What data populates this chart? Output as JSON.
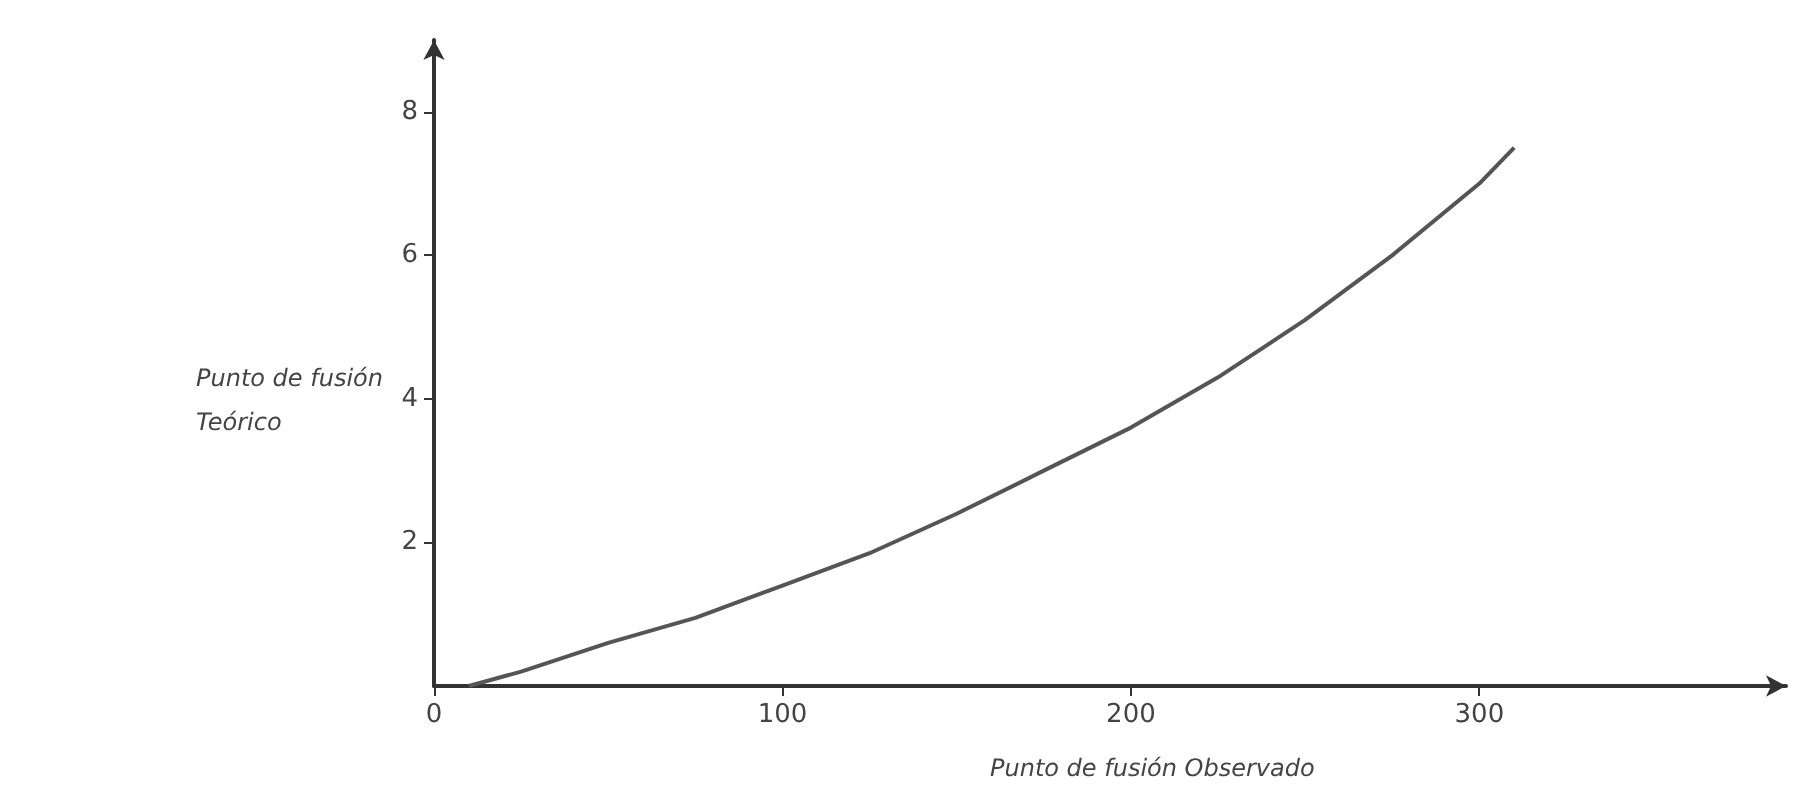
{
  "chart_data": {
    "type": "line",
    "xlabel": "Punto de fusión Observado",
    "ylabel": "Punto de fusión Teórico",
    "x": [
      10,
      25,
      50,
      75,
      100,
      125,
      150,
      175,
      200,
      225,
      250,
      275,
      300,
      310
    ],
    "series": [
      {
        "color": "#555555",
        "values": [
          0,
          0.2,
          0.6,
          0.95,
          1.4,
          1.85,
          2.4,
          3.0,
          3.6,
          4.3,
          5.1,
          6.0,
          7.0,
          7.5
        ]
      }
    ],
    "xlim": [
      0,
      388
    ],
    "xticks": [
      0,
      100,
      200,
      300
    ],
    "ylim": [
      0,
      9
    ],
    "yticks": [
      2,
      4,
      6,
      8
    ],
    "grid": false,
    "marker": "none",
    "line_style": "solid"
  }
}
